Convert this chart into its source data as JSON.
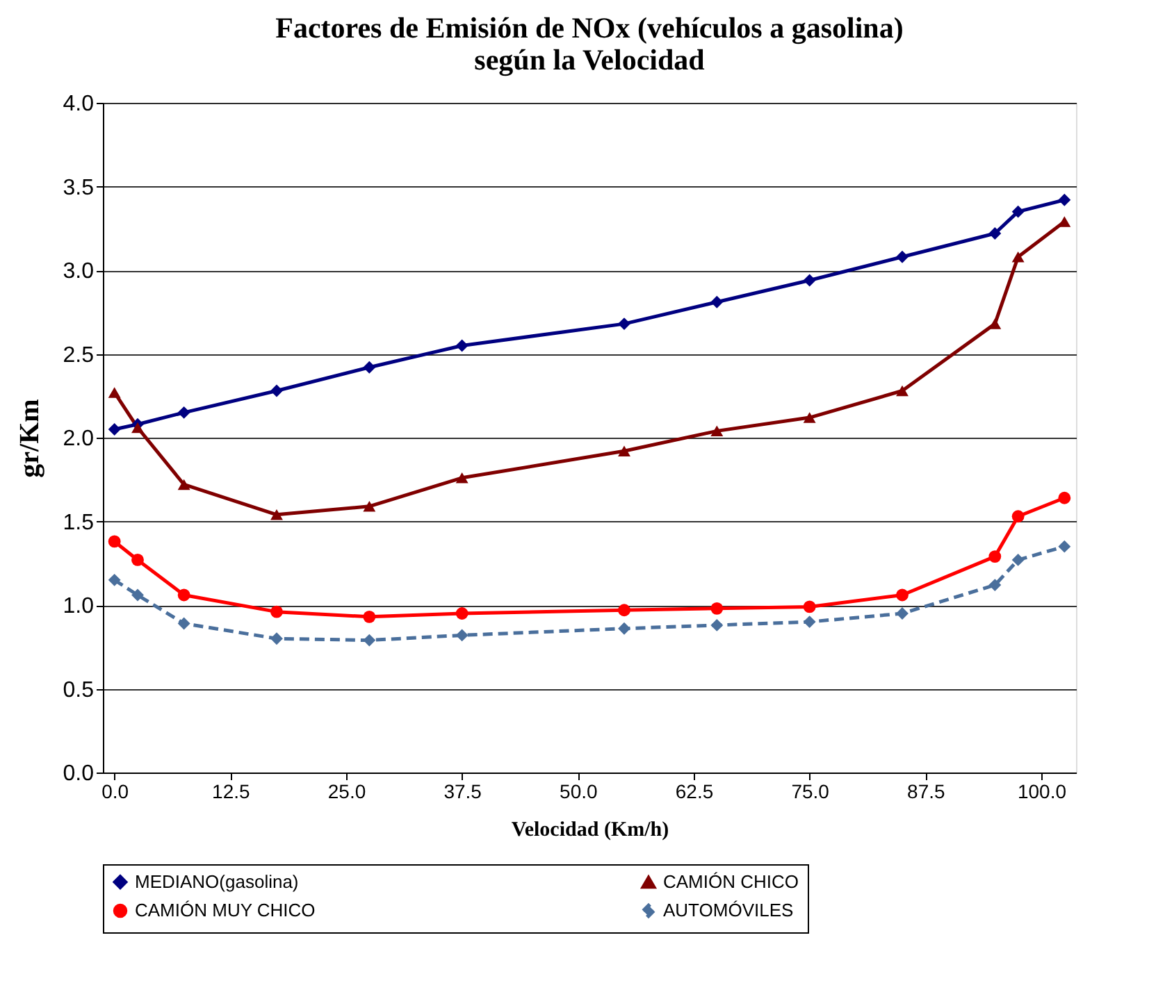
{
  "chart_data": {
    "type": "line",
    "title": "Factores de Emisión de NOx (vehículos a gasolina)\nsegún la Velocidad",
    "xlabel": "Velocidad  (Km/h)",
    "ylabel": "gr/Km",
    "x": [
      0,
      2.5,
      7.5,
      17.5,
      27.5,
      37.5,
      55,
      65,
      75,
      85,
      95,
      97.5,
      102.5
    ],
    "series": [
      {
        "name": "MEDIANO(gasolina)",
        "color": "#000080",
        "marker": "diamond",
        "line_style": "solid",
        "values": [
          2.05,
          2.08,
          2.15,
          2.28,
          2.42,
          2.55,
          2.68,
          2.81,
          2.94,
          3.08,
          3.22,
          3.35,
          3.42
        ]
      },
      {
        "name": "CAMIÓN CHICO",
        "color": "#800000",
        "marker": "triangle",
        "line_style": "solid",
        "values": [
          2.27,
          2.06,
          1.72,
          1.54,
          1.59,
          1.76,
          1.92,
          2.04,
          2.12,
          2.28,
          2.68,
          3.08,
          3.29
        ]
      },
      {
        "name": "CAMIÓN MUY CHICO",
        "color": "#ff0000",
        "marker": "circle",
        "line_style": "solid",
        "values": [
          1.38,
          1.27,
          1.06,
          0.96,
          0.93,
          0.95,
          0.97,
          0.98,
          0.99,
          1.06,
          1.29,
          1.53,
          1.64
        ]
      },
      {
        "name": "AUTOMÓVILES",
        "color": "#4a6f9c",
        "marker": "diamond",
        "line_style": "dashed",
        "values": [
          1.15,
          1.06,
          0.89,
          0.8,
          0.79,
          0.82,
          0.86,
          0.88,
          0.9,
          0.95,
          1.12,
          1.27,
          1.35
        ]
      }
    ],
    "xlim": [
      -1.25,
      103.75
    ],
    "xticks": [
      {
        "value": 0,
        "label": "0.0"
      },
      12.5,
      {
        "value": 25,
        "label": "25.0"
      },
      37.5,
      {
        "value": 50,
        "label": "50.0"
      },
      62.5,
      {
        "value": 75,
        "label": "75.0"
      },
      87.5,
      {
        "value": 100,
        "label": "100.0"
      }
    ],
    "ylim": [
      0,
      4
    ],
    "yticks": [
      {
        "value": 0,
        "label": "0.0"
      },
      0.5,
      {
        "value": 1,
        "label": "1.0"
      },
      1.5,
      {
        "value": 2,
        "label": "2.0"
      },
      2.5,
      {
        "value": 3,
        "label": "3.0"
      },
      3.5,
      {
        "value": 4,
        "label": "4.0"
      }
    ],
    "grid": "y",
    "legend": "bottom"
  }
}
